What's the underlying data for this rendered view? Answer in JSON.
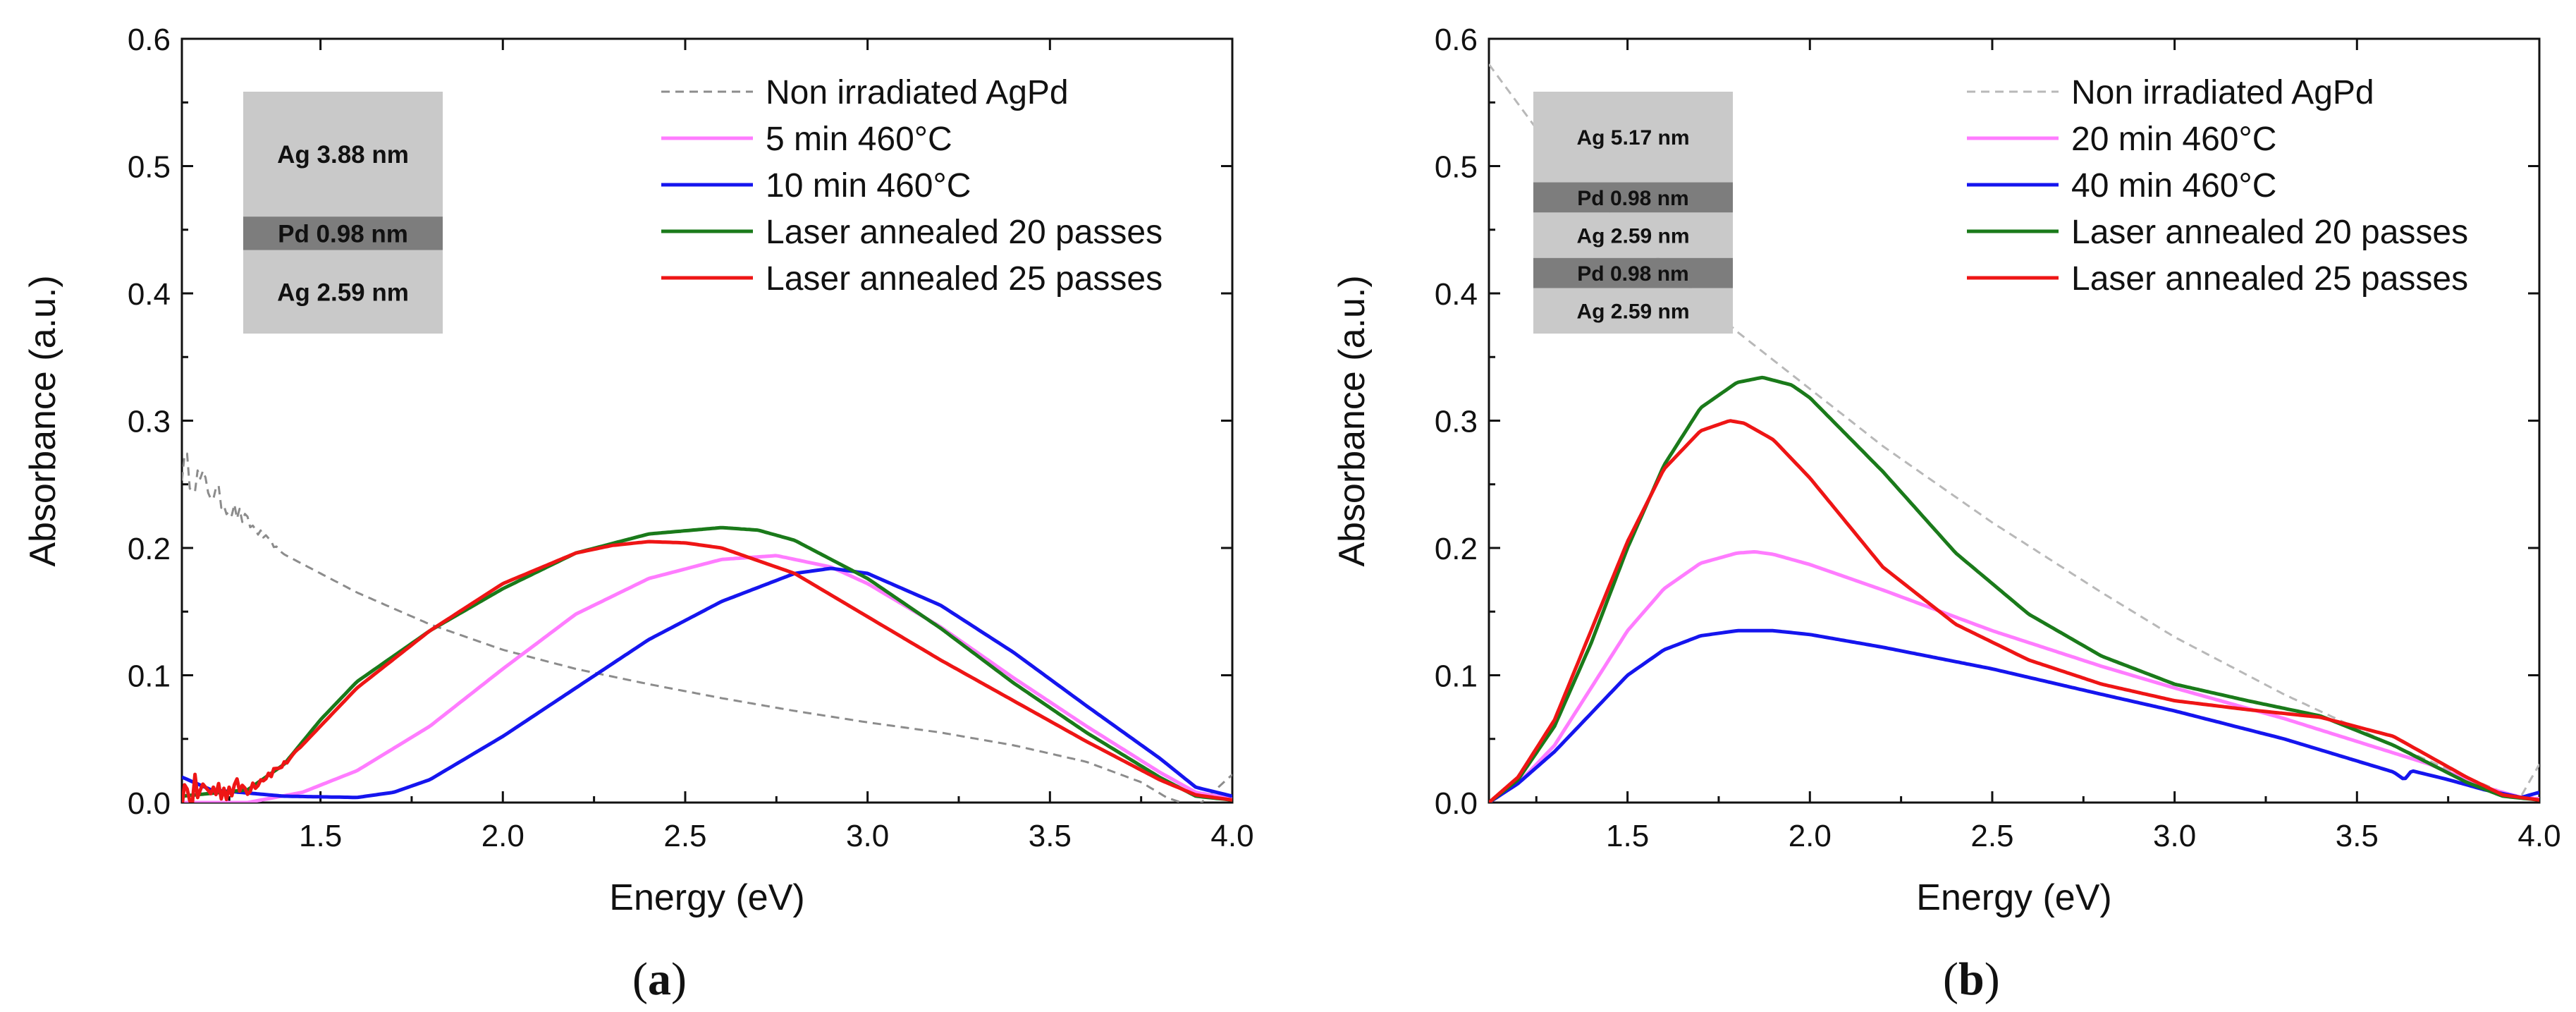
{
  "colors": {
    "dashed_grey": "#8c8c8c",
    "light_grey_dashed": "#b8b8b8",
    "magenta": "#ff7cff",
    "blue": "#1515ee",
    "green": "#1a7a1a",
    "red": "#ee1515",
    "stack_light": "#c9c9c9",
    "stack_dark": "#7d7d7d"
  },
  "chart_data": [
    {
      "panel_label_text": "(a)",
      "panel_label_letter": "a",
      "type": "line",
      "title": "",
      "xlabel": "Energy (eV)",
      "ylabel": "Absorbance (a.u.)",
      "xlim": [
        1.12,
        4.0
      ],
      "ylim": [
        0.0,
        0.6
      ],
      "xticks": [
        "1.5",
        "2.0",
        "2.5",
        "3.0",
        "3.5",
        "4.0"
      ],
      "yticks": [
        "0.0",
        "0.1",
        "0.2",
        "0.3",
        "0.4",
        "0.5",
        "0.6"
      ],
      "legend_position": "top-right",
      "layer_stack": [
        {
          "label": "Ag 3.88 nm",
          "shade": "light",
          "thickness": 3.88
        },
        {
          "label": "Pd 0.98 nm",
          "shade": "dark",
          "thickness": 0.98
        },
        {
          "label": "Ag 2.59 nm",
          "shade": "light",
          "thickness": 2.59
        }
      ],
      "series": [
        {
          "name": "Non irradiated AgPd",
          "color": "#8c8c8c",
          "dashed": true,
          "noise_below": 1.4,
          "x": [
            1.12,
            1.2,
            1.3,
            1.4,
            1.5,
            1.6,
            1.8,
            2.0,
            2.2,
            2.4,
            2.6,
            2.8,
            3.0,
            3.2,
            3.4,
            3.6,
            3.75,
            3.82,
            3.9,
            4.0
          ],
          "y": [
            0.265,
            0.245,
            0.22,
            0.195,
            0.18,
            0.165,
            0.14,
            0.12,
            0.105,
            0.093,
            0.082,
            0.072,
            0.063,
            0.055,
            0.045,
            0.032,
            0.016,
            0.004,
            -0.004,
            0.022
          ]
        },
        {
          "name": "5 min 460°C",
          "color": "#ff7cff",
          "dashed": false,
          "x": [
            1.12,
            1.3,
            1.45,
            1.6,
            1.8,
            2.0,
            2.2,
            2.4,
            2.6,
            2.75,
            2.9,
            3.0,
            3.2,
            3.4,
            3.6,
            3.8,
            3.9,
            4.0
          ],
          "y": [
            0.0,
            0.0,
            0.008,
            0.025,
            0.06,
            0.105,
            0.148,
            0.176,
            0.191,
            0.194,
            0.185,
            0.172,
            0.138,
            0.098,
            0.06,
            0.024,
            0.008,
            0.003
          ]
        },
        {
          "name": "10 min 460°C",
          "color": "#1515ee",
          "dashed": false,
          "x": [
            1.12,
            1.2,
            1.4,
            1.6,
            1.7,
            1.8,
            2.0,
            2.2,
            2.4,
            2.6,
            2.8,
            2.9,
            3.0,
            3.2,
            3.4,
            3.6,
            3.8,
            3.9,
            4.0
          ],
          "y": [
            0.02,
            0.01,
            0.005,
            0.004,
            0.008,
            0.018,
            0.052,
            0.09,
            0.128,
            0.158,
            0.18,
            0.184,
            0.18,
            0.155,
            0.118,
            0.076,
            0.035,
            0.012,
            0.005
          ]
        },
        {
          "name": "Laser annealed 20 passes",
          "color": "#1a7a1a",
          "dashed": false,
          "x": [
            1.12,
            1.3,
            1.4,
            1.5,
            1.6,
            1.8,
            2.0,
            2.2,
            2.4,
            2.6,
            2.7,
            2.8,
            3.0,
            3.2,
            3.4,
            3.6,
            3.8,
            3.9,
            4.0
          ],
          "y": [
            0.005,
            0.01,
            0.03,
            0.065,
            0.095,
            0.135,
            0.168,
            0.196,
            0.211,
            0.216,
            0.214,
            0.206,
            0.176,
            0.137,
            0.094,
            0.055,
            0.02,
            0.005,
            0.002
          ]
        },
        {
          "name": "Laser annealed 25 passes",
          "color": "#ee1515",
          "dashed": false,
          "noise_below": 1.45,
          "x": [
            1.12,
            1.3,
            1.4,
            1.5,
            1.6,
            1.8,
            2.0,
            2.2,
            2.3,
            2.4,
            2.5,
            2.6,
            2.8,
            3.0,
            3.2,
            3.4,
            3.6,
            3.8,
            3.9,
            4.0
          ],
          "y": [
            0.008,
            0.012,
            0.03,
            0.06,
            0.09,
            0.135,
            0.172,
            0.196,
            0.202,
            0.205,
            0.204,
            0.2,
            0.18,
            0.146,
            0.112,
            0.08,
            0.048,
            0.018,
            0.006,
            0.002
          ]
        }
      ]
    },
    {
      "panel_label_text": "(b)",
      "panel_label_letter": "b",
      "type": "line",
      "title": "",
      "xlabel": "Energy (eV)",
      "ylabel": "Absorbance (a.u.)",
      "xlim": [
        1.12,
        4.0
      ],
      "ylim": [
        0.0,
        0.6
      ],
      "xticks": [
        "1.5",
        "2.0",
        "2.5",
        "3.0",
        "3.5",
        "4.0"
      ],
      "yticks": [
        "0.0",
        "0.1",
        "0.2",
        "0.3",
        "0.4",
        "0.5",
        "0.6"
      ],
      "legend_position": "top-right",
      "layer_stack": [
        {
          "label": "Ag 5.17 nm",
          "shade": "light",
          "thickness": 5.17
        },
        {
          "label": "Pd 0.98 nm",
          "shade": "dark",
          "thickness": 0.98
        },
        {
          "label": "Ag 2.59 nm",
          "shade": "light",
          "thickness": 2.59
        },
        {
          "label": "Pd 0.98 nm",
          "shade": "dark",
          "thickness": 0.98
        },
        {
          "label": "Ag 2.59 nm",
          "shade": "light",
          "thickness": 2.59
        }
      ],
      "series": [
        {
          "name": "Non irradiated AgPd",
          "color": "#b8b8b8",
          "dashed": true,
          "x": [
            1.12,
            1.3,
            1.5,
            1.8,
            2.0,
            2.2,
            2.5,
            2.8,
            3.0,
            3.3,
            3.6,
            3.8,
            3.9,
            3.95,
            4.0
          ],
          "y": [
            0.58,
            0.51,
            0.45,
            0.37,
            0.325,
            0.28,
            0.22,
            0.165,
            0.13,
            0.085,
            0.045,
            0.02,
            0.008,
            0.005,
            0.03
          ]
        },
        {
          "name": "20 min 460°C",
          "color": "#ff7cff",
          "dashed": false,
          "x": [
            1.12,
            1.2,
            1.3,
            1.4,
            1.5,
            1.6,
            1.7,
            1.8,
            1.85,
            1.9,
            2.0,
            2.2,
            2.5,
            2.8,
            3.0,
            3.3,
            3.5,
            3.7,
            3.85,
            3.95,
            4.0
          ],
          "y": [
            0.0,
            0.015,
            0.045,
            0.09,
            0.135,
            0.168,
            0.188,
            0.196,
            0.197,
            0.195,
            0.187,
            0.167,
            0.135,
            0.107,
            0.09,
            0.066,
            0.048,
            0.03,
            0.012,
            0.004,
            0.003
          ]
        },
        {
          "name": "40 min 460°C",
          "color": "#1515ee",
          "dashed": false,
          "x": [
            1.12,
            1.2,
            1.3,
            1.4,
            1.5,
            1.6,
            1.7,
            1.8,
            1.9,
            2.0,
            2.2,
            2.5,
            2.8,
            3.0,
            3.3,
            3.6,
            3.63,
            3.65,
            3.75,
            3.85,
            3.95,
            4.0
          ],
          "y": [
            0.0,
            0.015,
            0.04,
            0.07,
            0.1,
            0.12,
            0.131,
            0.135,
            0.135,
            0.132,
            0.122,
            0.105,
            0.085,
            0.072,
            0.05,
            0.024,
            0.018,
            0.025,
            0.018,
            0.01,
            0.004,
            0.008
          ]
        },
        {
          "name": "Laser annealed 20 passes",
          "color": "#1a7a1a",
          "dashed": false,
          "x": [
            1.12,
            1.2,
            1.3,
            1.4,
            1.5,
            1.6,
            1.7,
            1.8,
            1.87,
            1.95,
            2.0,
            2.2,
            2.4,
            2.6,
            2.8,
            3.0,
            3.2,
            3.4,
            3.6,
            3.8,
            3.9,
            4.0
          ],
          "y": [
            0.0,
            0.018,
            0.06,
            0.125,
            0.2,
            0.265,
            0.31,
            0.33,
            0.334,
            0.328,
            0.318,
            0.26,
            0.196,
            0.148,
            0.115,
            0.093,
            0.08,
            0.068,
            0.045,
            0.016,
            0.005,
            0.002
          ]
        },
        {
          "name": "Laser annealed 25 passes",
          "color": "#ee1515",
          "dashed": false,
          "x": [
            1.12,
            1.2,
            1.3,
            1.4,
            1.5,
            1.6,
            1.7,
            1.78,
            1.82,
            1.9,
            2.0,
            2.2,
            2.4,
            2.6,
            2.8,
            3.0,
            3.2,
            3.4,
            3.6,
            3.8,
            3.9,
            4.0
          ],
          "y": [
            0.0,
            0.02,
            0.065,
            0.135,
            0.205,
            0.262,
            0.292,
            0.3,
            0.298,
            0.285,
            0.255,
            0.185,
            0.14,
            0.112,
            0.093,
            0.08,
            0.073,
            0.067,
            0.052,
            0.02,
            0.006,
            0.002
          ]
        }
      ]
    }
  ]
}
